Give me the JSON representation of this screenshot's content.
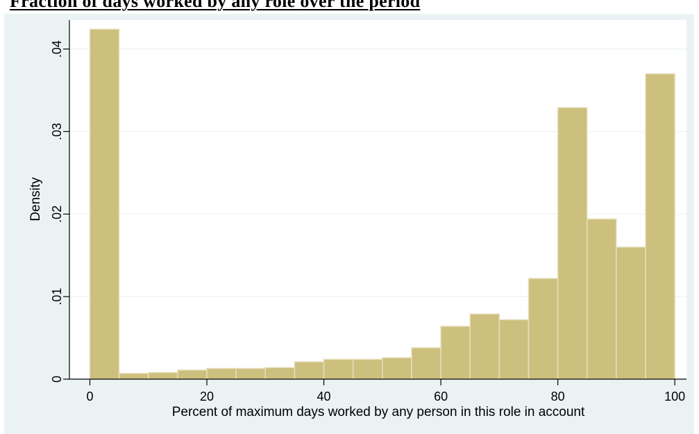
{
  "page_title": "Fraction of days worked by any role over the period",
  "chart_data": {
    "type": "bar",
    "title": "",
    "xlabel": "Percent of maximum days worked by any person in this role in account",
    "ylabel": "Density",
    "x_ticks": [
      "0",
      "20",
      "40",
      "60",
      "80",
      "100"
    ],
    "x_tick_values": [
      0,
      20,
      40,
      60,
      80,
      100
    ],
    "y_ticks": [
      "0",
      ".01",
      ".02",
      ".03",
      ".04"
    ],
    "y_tick_values": [
      0,
      0.01,
      0.02,
      0.03,
      0.04
    ],
    "xlim": [
      -3.5,
      102
    ],
    "ylim": [
      0,
      0.0435
    ],
    "grid": true,
    "bin_edges": [
      0,
      5,
      10,
      15,
      20,
      25,
      30,
      35,
      40,
      45,
      50,
      55,
      60,
      65,
      70,
      75,
      80,
      85,
      90,
      95,
      100
    ],
    "values": [
      0.0424,
      0.0007,
      0.0008,
      0.0011,
      0.0013,
      0.0013,
      0.0014,
      0.0021,
      0.0024,
      0.0024,
      0.0026,
      0.0038,
      0.0064,
      0.0079,
      0.0072,
      0.0122,
      0.0329,
      0.0194,
      0.016,
      0.037
    ],
    "colors": {
      "bar_fill": "#cdbf7d",
      "bar_edge": "#e6dfbd",
      "plot_bg": "#ffffff",
      "outer_bg": "#eaf2f3",
      "grid": "#eaf2f3"
    }
  }
}
